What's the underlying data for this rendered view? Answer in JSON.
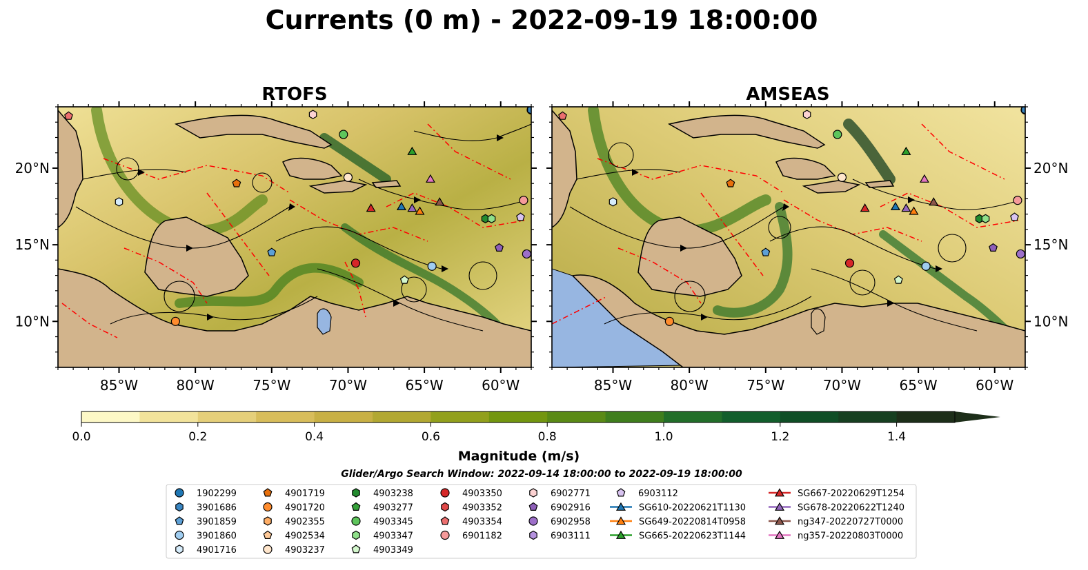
{
  "title": "Currents (0 m) - 2022-09-19 18:00:00",
  "panels": [
    {
      "title": "RTOFS",
      "model": "rtofs"
    },
    {
      "title": "AMSEAS",
      "model": "amseas"
    }
  ],
  "lon_ticks": [
    "85°W",
    "80°W",
    "75°W",
    "70°W",
    "65°W",
    "60°W"
  ],
  "lat_ticks": [
    "20°N",
    "15°N",
    "10°N"
  ],
  "map_extent": {
    "lon": [
      -89,
      -58
    ],
    "lat": [
      7,
      24
    ]
  },
  "colorbar": {
    "label": "Magnitude (m/s)",
    "ticks": [
      "0.0",
      "0.2",
      "0.4",
      "0.6",
      "0.8",
      "1.0",
      "1.2",
      "1.4"
    ],
    "range": [
      0,
      1.5
    ],
    "extend": "max",
    "colors": [
      "#fdf8c6",
      "#f2e39b",
      "#e5cf7a",
      "#d8bd5b",
      "#c8b045",
      "#b2a832",
      "#92a01c",
      "#73960f",
      "#5a8a15",
      "#3f7e1d",
      "#226e29",
      "#125e2c",
      "#0f4e26",
      "#163f20",
      "#1d2e19"
    ]
  },
  "search_window": "Glider/Argo Search Window: 2022-09-14 18:00:00 to 2022-09-19 18:00:00",
  "colors": {
    "land": "#d2b48c",
    "ocean_outside": "#97b6e1",
    "eez": "#ff0000",
    "lake": "#97b6e1"
  },
  "legend": [
    {
      "label": "1902299",
      "marker": "circle",
      "color": "#1f77b4"
    },
    {
      "label": "3901686",
      "marker": "hexagon",
      "color": "#3a86c2"
    },
    {
      "label": "3901859",
      "marker": "pentagon",
      "color": "#5da0d6"
    },
    {
      "label": "3901860",
      "marker": "circle",
      "color": "#a0cdf0"
    },
    {
      "label": "4901716",
      "marker": "hexagon",
      "color": "#d6ecfb"
    },
    {
      "label": "4901719",
      "marker": "pentagon",
      "color": "#e8700c"
    },
    {
      "label": "4901720",
      "marker": "circle",
      "color": "#ff8c2e"
    },
    {
      "label": "4902355",
      "marker": "hexagon",
      "color": "#ffae66"
    },
    {
      "label": "4902534",
      "marker": "pentagon",
      "color": "#ffca99"
    },
    {
      "label": "4903237",
      "marker": "circle",
      "color": "#ffe6cc"
    },
    {
      "label": "4903238",
      "marker": "hexagon",
      "color": "#238b2f"
    },
    {
      "label": "4903277",
      "marker": "pentagon",
      "color": "#36a13a"
    },
    {
      "label": "4903345",
      "marker": "circle",
      "color": "#5ec55c"
    },
    {
      "label": "4903347",
      "marker": "hexagon",
      "color": "#8fe08a"
    },
    {
      "label": "4903349",
      "marker": "pentagon",
      "color": "#d3f7cc"
    },
    {
      "label": "4903350",
      "marker": "circle",
      "color": "#d62728"
    },
    {
      "label": "4903352",
      "marker": "hexagon",
      "color": "#e04848"
    },
    {
      "label": "4903354",
      "marker": "pentagon",
      "color": "#ec6f6f"
    },
    {
      "label": "6901182",
      "marker": "circle",
      "color": "#f59a9a"
    },
    {
      "label": "6902771",
      "marker": "hexagon",
      "color": "#fcd2d2"
    },
    {
      "label": "6902916",
      "marker": "pentagon",
      "color": "#8e5fb8"
    },
    {
      "label": "6902958",
      "marker": "circle",
      "color": "#9d6fc9"
    },
    {
      "label": "6903111",
      "marker": "hexagon",
      "color": "#b592de"
    },
    {
      "label": "6903112",
      "marker": "pentagon",
      "color": "#d8c3f0"
    },
    {
      "label": "SG610-20220621T1130",
      "marker": "triangle",
      "color": "#1f77b4"
    },
    {
      "label": "SG649-20220814T0958",
      "marker": "triangle",
      "color": "#ff7f0e"
    },
    {
      "label": "SG665-20220623T1144",
      "marker": "triangle",
      "color": "#2ca02c"
    },
    {
      "label": "SG667-20220629T1254",
      "marker": "triangle",
      "color": "#d62728"
    },
    {
      "label": "SG678-20220622T1240",
      "marker": "triangle",
      "color": "#9467bd"
    },
    {
      "label": "ng347-20220727T0000",
      "marker": "triangle",
      "color": "#8c564b"
    },
    {
      "label": "ng357-20220803T0000",
      "marker": "triangle",
      "color": "#e377c2"
    }
  ],
  "platform_positions": [
    {
      "id": "1902299",
      "lon": -58.0,
      "lat": 23.8
    },
    {
      "id": "3901686",
      "lon": -58.0,
      "lat": 23.8
    },
    {
      "id": "3901859",
      "lon": -75.0,
      "lat": 14.5
    },
    {
      "id": "3901860",
      "lon": -64.5,
      "lat": 13.6
    },
    {
      "id": "4901716",
      "lon": -85.0,
      "lat": 17.8
    },
    {
      "id": "4901719",
      "lon": -77.3,
      "lat": 19.0
    },
    {
      "id": "4901720",
      "lon": -81.3,
      "lat": 10.0
    },
    {
      "id": "4903237",
      "lon": -70.0,
      "lat": 19.4
    },
    {
      "id": "4903345",
      "lon": -70.3,
      "lat": 22.2
    },
    {
      "id": "4903349",
      "lon": -66.3,
      "lat": 12.7
    },
    {
      "id": "4903350",
      "lon": -69.5,
      "lat": 13.8
    },
    {
      "id": "4903354",
      "lon": -88.3,
      "lat": 23.4
    },
    {
      "id": "6901182",
      "lon": -58.5,
      "lat": 17.9
    },
    {
      "id": "6902771",
      "lon": -72.3,
      "lat": 23.5
    },
    {
      "id": "6902916",
      "lon": -60.1,
      "lat": 14.8
    },
    {
      "id": "6902958",
      "lon": -58.3,
      "lat": 14.4
    },
    {
      "id": "6903112",
      "lon": -58.7,
      "lat": 16.8
    },
    {
      "id": "4903238",
      "lon": -61.0,
      "lat": 16.7
    },
    {
      "id": "4903347",
      "lon": -60.6,
      "lat": 16.7
    },
    {
      "id": "SG610-20220621T1130",
      "lon": -66.5,
      "lat": 17.5
    },
    {
      "id": "SG649-20220814T0958",
      "lon": -65.3,
      "lat": 17.2
    },
    {
      "id": "SG665-20220623T1144",
      "lon": -65.8,
      "lat": 21.1
    },
    {
      "id": "SG667-20220629T1254",
      "lon": -68.5,
      "lat": 17.4
    },
    {
      "id": "SG678-20220622T1240",
      "lon": -65.8,
      "lat": 17.4
    },
    {
      "id": "ng347-20220727T0000",
      "lon": -64.0,
      "lat": 17.8
    },
    {
      "id": "ng357-20220803T0000",
      "lon": -64.6,
      "lat": 19.3
    }
  ]
}
